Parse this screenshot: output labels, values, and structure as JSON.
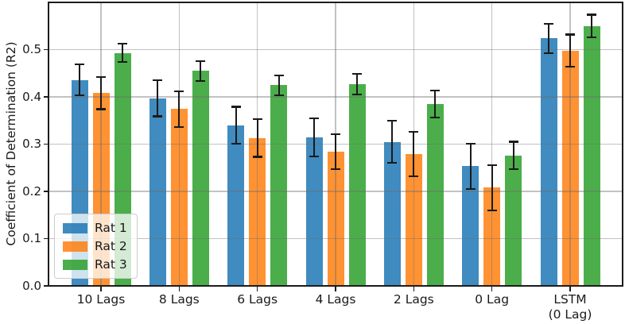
{
  "figure": {
    "ylabel": "Coefficient of Determination (R2)"
  },
  "chart_data": {
    "type": "bar",
    "title": "",
    "xlabel": "",
    "ylabel": "Coefficient of Determination (R2)",
    "categories": [
      "10 Lags",
      "8 Lags",
      "6 Lags",
      "4 Lags",
      "2 Lags",
      "0 Lag",
      "LSTM\n(0 Lag)"
    ],
    "series": [
      {
        "name": "Rat 1",
        "color": "#1f77b4",
        "values": [
          0.436,
          0.397,
          0.34,
          0.314,
          0.305,
          0.253,
          0.524
        ],
        "errors": [
          0.033,
          0.038,
          0.039,
          0.04,
          0.044,
          0.048,
          0.031
        ]
      },
      {
        "name": "Rat 2",
        "color": "#ff7f0e",
        "values": [
          0.408,
          0.374,
          0.313,
          0.284,
          0.279,
          0.208,
          0.498
        ],
        "errors": [
          0.034,
          0.038,
          0.04,
          0.037,
          0.047,
          0.048,
          0.034
        ]
      },
      {
        "name": "Rat 3",
        "color": "#2ca02c",
        "values": [
          0.493,
          0.455,
          0.425,
          0.427,
          0.385,
          0.276,
          0.55
        ],
        "errors": [
          0.019,
          0.021,
          0.021,
          0.022,
          0.028,
          0.029,
          0.024
        ]
      }
    ],
    "yticks": [
      0.0,
      0.1,
      0.2,
      0.3,
      0.4,
      0.5
    ],
    "ylim": [
      0,
      0.6
    ],
    "grid": true,
    "legend_position": "lower left",
    "error_bar_color": "#1a1a1a",
    "grid_color": "#b0b0b0",
    "spine_color": "#1c1c1c"
  }
}
